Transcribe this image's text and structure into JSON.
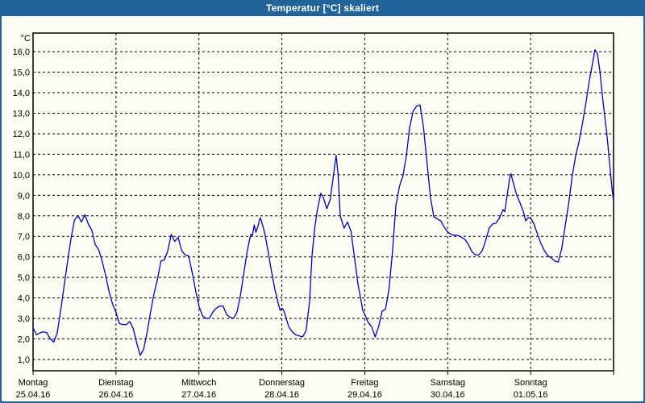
{
  "window": {
    "title": "Temperatur [°C] skaliert"
  },
  "colors": {
    "titlebar": "#20649a",
    "window_border": "#20649a",
    "background": "#fcfcf2",
    "line": "#0000c8",
    "grid": "#000000",
    "text": "#000000"
  },
  "chart_data": {
    "type": "line",
    "title": "Temperatur [°C] skaliert",
    "unit_label": "°C",
    "ylabel": "Temperatur [°C]",
    "xlabel": "",
    "grid": "dashed, horizontal at every 1.0 °C and vertical at every day boundary",
    "legend_position": "none",
    "ylim": [
      0.45,
      17.2
    ],
    "xlim_hours": [
      0,
      168
    ],
    "y_ticks": [
      {
        "value": 16,
        "label": "16,0"
      },
      {
        "value": 15,
        "label": "15,0"
      },
      {
        "value": 14,
        "label": "14,0"
      },
      {
        "value": 13,
        "label": "13,0"
      },
      {
        "value": 12,
        "label": "12,0"
      },
      {
        "value": 11,
        "label": "11,0"
      },
      {
        "value": 10,
        "label": "10,0"
      },
      {
        "value": 9,
        "label": "9,0"
      },
      {
        "value": 8,
        "label": "8,0"
      },
      {
        "value": 7,
        "label": "7,0"
      },
      {
        "value": 6,
        "label": "6,0"
      },
      {
        "value": 5,
        "label": "5,0"
      },
      {
        "value": 4,
        "label": "4,0"
      },
      {
        "value": 3,
        "label": "3,0"
      },
      {
        "value": 2,
        "label": "2,0"
      },
      {
        "value": 1,
        "label": "1,0"
      }
    ],
    "x_days": [
      {
        "name": "Montag",
        "date": "25.04.16"
      },
      {
        "name": "Dienstag",
        "date": "26.04.16"
      },
      {
        "name": "Mittwoch",
        "date": "27.04.16"
      },
      {
        "name": "Donnerstag",
        "date": "28.04.16"
      },
      {
        "name": "Freitag",
        "date": "29.04.16"
      },
      {
        "name": "Samstag",
        "date": "30.04.16"
      },
      {
        "name": "Sonntag",
        "date": "01.05.16"
      }
    ],
    "series": [
      {
        "name": "Temperatur [°C] skaliert",
        "x_unit": "hours since Monday 25.04.16 00:00",
        "points": [
          [
            0,
            2.55
          ],
          [
            1,
            2.2
          ],
          [
            2,
            2.3
          ],
          [
            3,
            2.35
          ],
          [
            4,
            2.3
          ],
          [
            5,
            2.0
          ],
          [
            6,
            1.85
          ],
          [
            7,
            2.3
          ],
          [
            8,
            3.4
          ],
          [
            9,
            4.6
          ],
          [
            10,
            5.8
          ],
          [
            11,
            6.9
          ],
          [
            12,
            7.8
          ],
          [
            13,
            8.0
          ],
          [
            13.5,
            7.85
          ],
          [
            14,
            7.7
          ],
          [
            15,
            8.05
          ],
          [
            16,
            7.6
          ],
          [
            17,
            7.3
          ],
          [
            18,
            6.6
          ],
          [
            19,
            6.35
          ],
          [
            20,
            5.8
          ],
          [
            21,
            5.1
          ],
          [
            22,
            4.3
          ],
          [
            23,
            3.7
          ],
          [
            24,
            3.3
          ],
          [
            25,
            2.75
          ],
          [
            26,
            2.7
          ],
          [
            27,
            2.7
          ],
          [
            28,
            2.85
          ],
          [
            29,
            2.5
          ],
          [
            30,
            1.8
          ],
          [
            31,
            1.2
          ],
          [
            32,
            1.5
          ],
          [
            33,
            2.3
          ],
          [
            34,
            3.3
          ],
          [
            35,
            4.2
          ],
          [
            36,
            4.9
          ],
          [
            37,
            5.8
          ],
          [
            38,
            5.85
          ],
          [
            39,
            6.3
          ],
          [
            40,
            7.1
          ],
          [
            41,
            6.75
          ],
          [
            42,
            6.95
          ],
          [
            43,
            6.3
          ],
          [
            44,
            6.1
          ],
          [
            45,
            6.05
          ],
          [
            46,
            5.3
          ],
          [
            47,
            4.4
          ],
          [
            48,
            3.6
          ],
          [
            49,
            3.15
          ],
          [
            50,
            3.0
          ],
          [
            51,
            3.0
          ],
          [
            52,
            3.3
          ],
          [
            53,
            3.5
          ],
          [
            54,
            3.6
          ],
          [
            55,
            3.6
          ],
          [
            56,
            3.2
          ],
          [
            57,
            3.05
          ],
          [
            58,
            3.0
          ],
          [
            59,
            3.3
          ],
          [
            60,
            4.1
          ],
          [
            61,
            5.2
          ],
          [
            62,
            6.3
          ],
          [
            63,
            7.1
          ],
          [
            63.5,
            7.05
          ],
          [
            64,
            7.55
          ],
          [
            64.5,
            7.2
          ],
          [
            65,
            7.45
          ],
          [
            65.7,
            7.9
          ],
          [
            66,
            7.8
          ],
          [
            67,
            7.2
          ],
          [
            68,
            6.3
          ],
          [
            69,
            5.3
          ],
          [
            70,
            4.4
          ],
          [
            71,
            3.7
          ],
          [
            71.5,
            3.4
          ],
          [
            72,
            3.5
          ],
          [
            72.4,
            3.45
          ],
          [
            73,
            3.15
          ],
          [
            74,
            2.6
          ],
          [
            75,
            2.35
          ],
          [
            76,
            2.2
          ],
          [
            77,
            2.15
          ],
          [
            78,
            2.1
          ],
          [
            79,
            2.4
          ],
          [
            80,
            3.8
          ],
          [
            80.7,
            6.0
          ],
          [
            81.5,
            7.4
          ],
          [
            82.3,
            8.3
          ],
          [
            83.3,
            9.1
          ],
          [
            84,
            8.9
          ],
          [
            85,
            8.35
          ],
          [
            86,
            8.8
          ],
          [
            86.8,
            9.8
          ],
          [
            87.7,
            10.95
          ],
          [
            88.3,
            10.0
          ],
          [
            88.9,
            8.0
          ],
          [
            90,
            7.4
          ],
          [
            91,
            7.7
          ],
          [
            92,
            7.25
          ],
          [
            93,
            6.0
          ],
          [
            94,
            4.7
          ],
          [
            95,
            3.8
          ],
          [
            95.4,
            3.4
          ],
          [
            96,
            3.2
          ],
          [
            97,
            2.8
          ],
          [
            98,
            2.6
          ],
          [
            99,
            2.1
          ],
          [
            100,
            2.6
          ],
          [
            101,
            3.35
          ],
          [
            102,
            3.45
          ],
          [
            103,
            4.4
          ],
          [
            104,
            6.2
          ],
          [
            105,
            8.5
          ],
          [
            106,
            9.4
          ],
          [
            106.5,
            9.7
          ],
          [
            107,
            9.9
          ],
          [
            107.5,
            10.4
          ],
          [
            108,
            10.9
          ],
          [
            109,
            12.3
          ],
          [
            110,
            13.1
          ],
          [
            111,
            13.35
          ],
          [
            112,
            13.4
          ],
          [
            113,
            12.3
          ],
          [
            114,
            10.6
          ],
          [
            115,
            8.9
          ],
          [
            116,
            7.95
          ],
          [
            117,
            7.85
          ],
          [
            118,
            7.75
          ],
          [
            119,
            7.45
          ],
          [
            120,
            7.2
          ],
          [
            121,
            7.1
          ],
          [
            122,
            7.05
          ],
          [
            123,
            7.05
          ],
          [
            124,
            6.95
          ],
          [
            125,
            6.85
          ],
          [
            126,
            6.6
          ],
          [
            127,
            6.25
          ],
          [
            128,
            6.1
          ],
          [
            129,
            6.1
          ],
          [
            130,
            6.3
          ],
          [
            131,
            6.8
          ],
          [
            132,
            7.4
          ],
          [
            133,
            7.6
          ],
          [
            134,
            7.65
          ],
          [
            135,
            7.9
          ],
          [
            136,
            8.3
          ],
          [
            136.5,
            8.2
          ],
          [
            137,
            8.75
          ],
          [
            138,
            9.9
          ],
          [
            138.3,
            10.05
          ],
          [
            139,
            9.6
          ],
          [
            140,
            9.0
          ],
          [
            141,
            8.6
          ],
          [
            142,
            8.15
          ],
          [
            142.6,
            7.75
          ],
          [
            143.3,
            7.9
          ],
          [
            144,
            7.9
          ],
          [
            145,
            7.6
          ],
          [
            146,
            7.1
          ],
          [
            147,
            6.65
          ],
          [
            148,
            6.3
          ],
          [
            149,
            6.05
          ],
          [
            150,
            5.95
          ],
          [
            151,
            5.8
          ],
          [
            152,
            5.75
          ],
          [
            153,
            6.4
          ],
          [
            154,
            7.5
          ],
          [
            155,
            8.6
          ],
          [
            156,
            9.9
          ],
          [
            157,
            10.9
          ],
          [
            158,
            11.6
          ],
          [
            159,
            12.5
          ],
          [
            160,
            13.5
          ],
          [
            161,
            14.6
          ],
          [
            162,
            15.5
          ],
          [
            162.6,
            16.1
          ],
          [
            163.3,
            15.9
          ],
          [
            164,
            15.1
          ],
          [
            165,
            13.5
          ],
          [
            166,
            12.1
          ],
          [
            167,
            10.3
          ],
          [
            167.5,
            9.4
          ],
          [
            168,
            8.7
          ]
        ]
      }
    ]
  }
}
